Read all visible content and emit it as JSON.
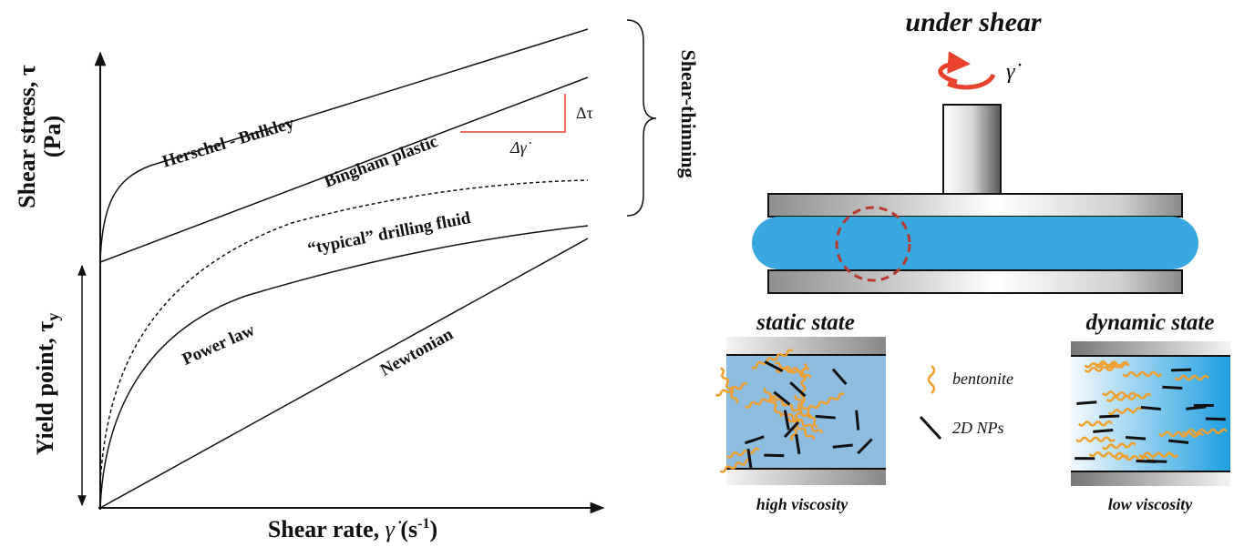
{
  "plot": {
    "y_axis_label": "Shear stress, τ",
    "y_axis_unit": "(Pa)",
    "yield_label": "Yield point, τ",
    "yield_subscript": "y",
    "x_axis_label": "Shear rate, ",
    "x_axis_symbol": "γ̇",
    "x_axis_unit_open": " (s",
    "x_axis_exponent": "-1",
    "x_axis_unit_close": ")",
    "curves": [
      "Herschel - Bulkley",
      "Bingham plastic",
      "“typical” drilling fluid",
      "Power law",
      "Newtonian"
    ],
    "delta_tau": "Δτ",
    "delta_gamma": "Δγ̇",
    "bracket_label": "Shear-thinning"
  },
  "schematic": {
    "title": "under shear",
    "shear_symbol": "γ̇",
    "static_title": "static state",
    "dynamic_title": "dynamic state",
    "legend": [
      "bentonite",
      "2D NPs"
    ],
    "static_caption": "high viscosity",
    "dynamic_caption": "low viscosity"
  }
}
